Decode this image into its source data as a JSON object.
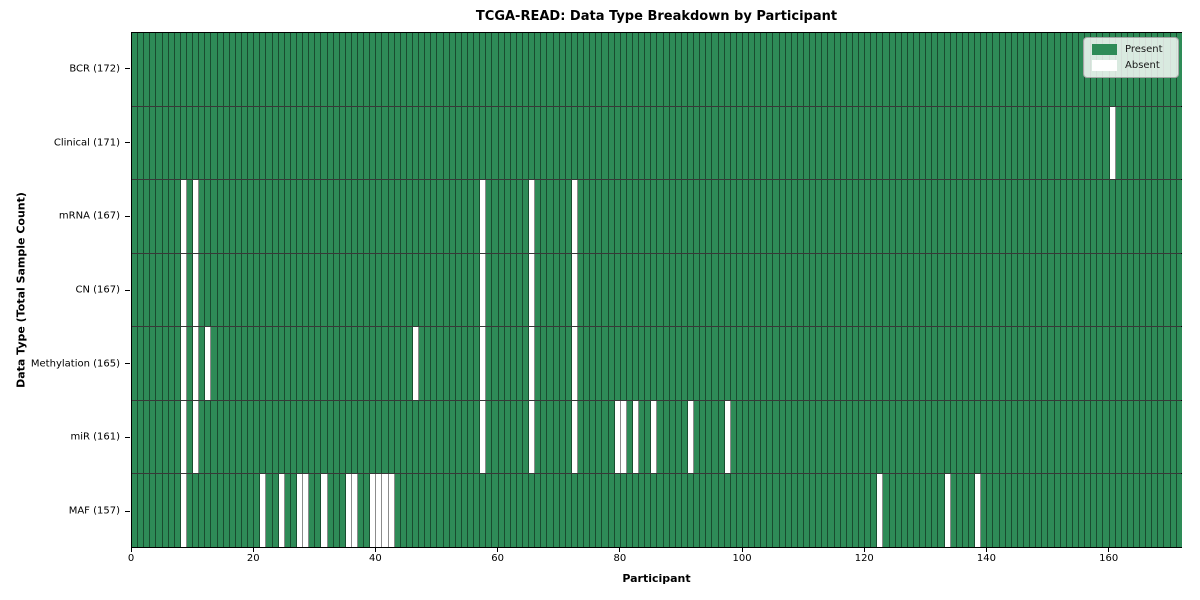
{
  "title": "TCGA-READ: Data Type Breakdown by Participant",
  "axes": {
    "xlabel": "Participant",
    "ylabel": "Data Type (Total Sample Count)",
    "x_ticks": [
      0,
      20,
      40,
      60,
      80,
      100,
      120,
      140,
      160
    ],
    "x_max": 172
  },
  "legend": {
    "items": [
      {
        "label": "Present",
        "color": "#2E8B57"
      },
      {
        "label": "Absent",
        "color": "#FFFFFF"
      }
    ]
  },
  "chart_data": {
    "type": "heatmap",
    "title": "TCGA-READ: Data Type Breakdown by Participant",
    "xlabel": "Participant",
    "ylabel": "Data Type (Total Sample Count)",
    "x_range": [
      0,
      172
    ],
    "participants_total": 172,
    "legend": [
      "Present",
      "Absent"
    ],
    "colors": {
      "present": "#2E8B57",
      "absent": "#FFFFFF"
    },
    "rows": [
      {
        "label": "BCR (172)",
        "name": "BCR",
        "count": 172,
        "absent_participants": []
      },
      {
        "label": "Clinical (171)",
        "name": "Clinical",
        "count": 171,
        "absent_participants": [
          160
        ]
      },
      {
        "label": "mRNA (167)",
        "name": "mRNA",
        "count": 167,
        "absent_participants": [
          8,
          10,
          57,
          65,
          72
        ]
      },
      {
        "label": "CN (167)",
        "name": "CN",
        "count": 167,
        "absent_participants": [
          8,
          10,
          57,
          65,
          72
        ]
      },
      {
        "label": "Methylation (165)",
        "name": "Methylation",
        "count": 165,
        "absent_participants": [
          8,
          10,
          12,
          46,
          57,
          65,
          72
        ]
      },
      {
        "label": "miR (161)",
        "name": "miR",
        "count": 161,
        "absent_participants": [
          8,
          10,
          57,
          65,
          72,
          79,
          80,
          82,
          85,
          91,
          97
        ]
      },
      {
        "label": "MAF (157)",
        "name": "MAF",
        "count": 157,
        "absent_participants": [
          8,
          21,
          24,
          27,
          28,
          31,
          35,
          36,
          39,
          40,
          41,
          42,
          122,
          133,
          138
        ]
      }
    ]
  }
}
